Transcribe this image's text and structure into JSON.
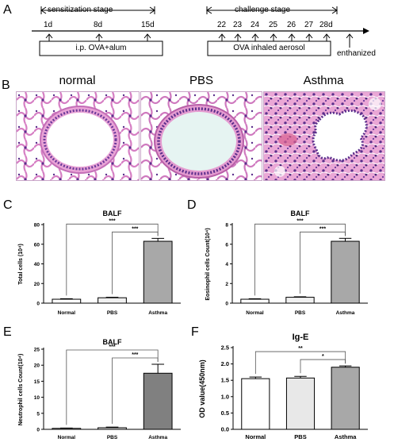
{
  "panel_labels": {
    "a": "A",
    "b": "B",
    "c": "C",
    "d": "D",
    "e": "E",
    "f": "F"
  },
  "timeline": {
    "sensitization_label": "sensitization stage",
    "challenge_label": "challenge stage",
    "sens_days": [
      "1d",
      "8d",
      "15d"
    ],
    "challenge_days": [
      "22",
      "23",
      "24",
      "25",
      "26",
      "27",
      "28d"
    ],
    "box_ip": "i.p. OVA+alum",
    "box_inhaled": "OVA inhaled aerosol",
    "end_label": "enthanized"
  },
  "histology": {
    "titles": [
      "normal",
      "PBS",
      "Asthma"
    ],
    "colors": {
      "stain_pink": "#e8a6d4",
      "nuclei": "#5b2f8c",
      "lumen": "#ffffff",
      "lumen_pbs": "#e6f4f2"
    }
  },
  "chart_data": [
    {
      "panel": "C",
      "type": "bar",
      "title": "BALF",
      "ylabel": "Total cells (10⁴)",
      "categories": [
        "Normal",
        "PBS",
        "Asthma"
      ],
      "values": [
        4,
        5.5,
        63
      ],
      "errors": [
        0.5,
        0.5,
        3
      ],
      "ylim": [
        0,
        80
      ],
      "yticks": [
        "0",
        "20",
        "40",
        "60",
        "80"
      ],
      "bar_colors": [
        "#ffffff",
        "#f0f0f0",
        "#a8a8a8"
      ],
      "sig": [
        {
          "from": 0,
          "to": 2,
          "label": "***"
        },
        {
          "from": 1,
          "to": 2,
          "label": "***"
        }
      ]
    },
    {
      "panel": "D",
      "type": "bar",
      "title": "BALF",
      "ylabel": "Eosinophil cells Count(10⁴)",
      "categories": [
        "Normal",
        "PBS",
        "Asthma"
      ],
      "values": [
        0.4,
        0.6,
        6.3
      ],
      "errors": [
        0.05,
        0.05,
        0.3
      ],
      "ylim": [
        0,
        8
      ],
      "yticks": [
        "0",
        "2",
        "4",
        "6",
        "8"
      ],
      "bar_colors": [
        "#ffffff",
        "#f0f0f0",
        "#a8a8a8"
      ],
      "sig": [
        {
          "from": 0,
          "to": 2,
          "label": "***"
        },
        {
          "from": 1,
          "to": 2,
          "label": "***"
        }
      ]
    },
    {
      "panel": "E",
      "type": "bar",
      "title": "BALF",
      "ylabel": "Neutrophil cells Count(10⁴)",
      "categories": [
        "Normal",
        "PBS",
        "Asthma"
      ],
      "values": [
        0.3,
        0.5,
        17.5
      ],
      "errors": [
        0.1,
        0.2,
        2.8
      ],
      "ylim": [
        0,
        25
      ],
      "yticks": [
        "0",
        "5",
        "10",
        "15",
        "20",
        "25"
      ],
      "bar_colors": [
        "#ffffff",
        "#f0f0f0",
        "#808080"
      ],
      "sig": [
        {
          "from": 0,
          "to": 2,
          "label": "***"
        },
        {
          "from": 1,
          "to": 2,
          "label": "***"
        }
      ]
    },
    {
      "panel": "F",
      "type": "bar",
      "title": "Ig-E",
      "ylabel": "OD value(450nm)",
      "categories": [
        "Normal",
        "PBS",
        "Asthma"
      ],
      "values": [
        1.55,
        1.57,
        1.9
      ],
      "errors": [
        0.05,
        0.05,
        0.04
      ],
      "ylim": [
        0,
        2.5
      ],
      "yticks": [
        "0.0",
        "0.5",
        "1.0",
        "1.5",
        "2.0",
        "2.5"
      ],
      "bar_colors": [
        "#ffffff",
        "#e8e8e8",
        "#a8a8a8"
      ],
      "sig": [
        {
          "from": 0,
          "to": 2,
          "label": "**"
        },
        {
          "from": 1,
          "to": 2,
          "label": "*"
        }
      ]
    }
  ]
}
